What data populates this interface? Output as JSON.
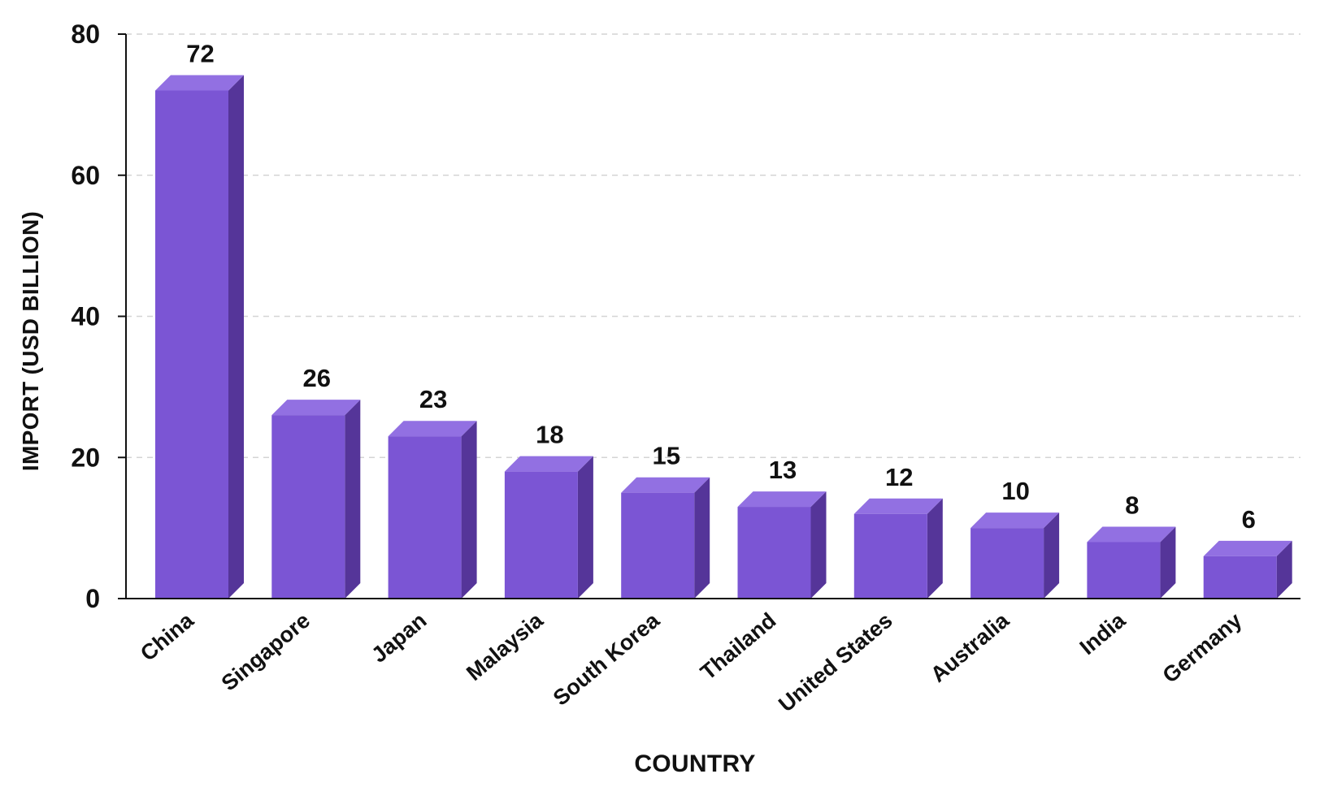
{
  "chart_data": {
    "type": "bar",
    "title": "",
    "xlabel": "COUNTRY",
    "ylabel": "IMPORT (USD BILLION)",
    "categories": [
      "China",
      "Singapore",
      "Japan",
      "Malaysia",
      "South Korea",
      "Thailand",
      "United States",
      "Australia",
      "India",
      "Germany"
    ],
    "values": [
      72,
      26,
      23,
      18,
      15,
      13,
      12,
      10,
      8,
      6
    ],
    "ylim": [
      0,
      80
    ],
    "yticks": [
      0,
      20,
      40,
      60,
      80
    ],
    "grid": true,
    "grid_style": "dashed-horizontal",
    "legend": "none",
    "bar_style": "3d",
    "colors": {
      "bar_front": "#7B55D4",
      "bar_top": "#9270E2",
      "bar_side": "#553599",
      "grid": "#d4d4d4",
      "axis": "#111111",
      "text": "#111111"
    }
  }
}
